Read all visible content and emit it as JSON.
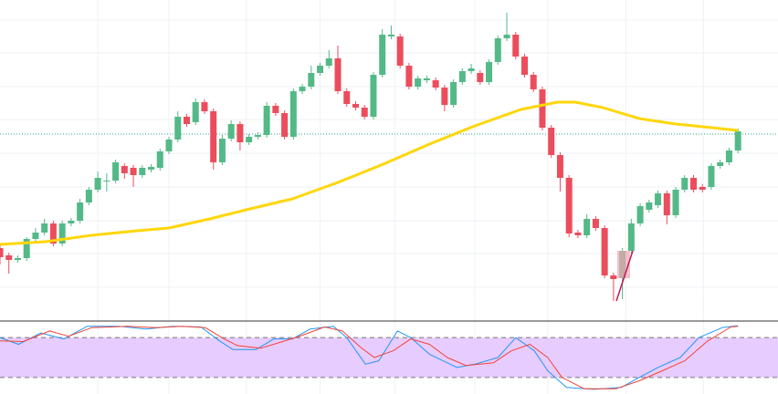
{
  "chart_data": [
    {
      "type": "candlestick",
      "xlim": [
        0,
        87.5
      ],
      "ylim": [
        0,
        350
      ],
      "xticks": [
        11,
        19,
        27.7,
        36,
        44.4,
        53.4,
        61.6,
        70.4,
        79.1
      ],
      "yticks": [
        35,
        72,
        108,
        145,
        182,
        219,
        255,
        292,
        328
      ],
      "grid": true,
      "up_color": "#53b987",
      "down_color": "#eb4d5c",
      "open": [
        78,
        70,
        65,
        67,
        88,
        95,
        105,
        83,
        105,
        108,
        128,
        142,
        152,
        152,
        168,
        166,
        158,
        164,
        166,
        184,
        197,
        222,
        216,
        238,
        228,
        172,
        198,
        214,
        194,
        200,
        202,
        234,
        226,
        200,
        250,
        255,
        270,
        278,
        286,
        250,
        236,
        232,
        222,
        268,
        310,
        310,
        278,
        255,
        262,
        262,
        254,
        235,
        260,
        272,
        270,
        260,
        282,
        308,
        312,
        288,
        268,
        252,
        210,
        180,
        155,
        95,
        92,
        110,
        100,
        48,
        45,
        75,
        105,
        120,
        125,
        138,
        114,
        142,
        155,
        145,
        145,
        168,
        172,
        185
      ],
      "close": [
        68,
        65,
        67,
        88,
        95,
        105,
        83,
        105,
        108,
        128,
        142,
        155,
        152,
        172,
        160,
        158,
        166,
        167,
        184,
        197,
        222,
        214,
        238,
        228,
        172,
        198,
        214,
        194,
        200,
        202,
        234,
        226,
        200,
        250,
        255,
        270,
        278,
        286,
        250,
        236,
        232,
        222,
        268,
        312,
        312,
        278,
        255,
        264,
        264,
        254,
        235,
        260,
        272,
        275,
        260,
        282,
        308,
        312,
        288,
        268,
        252,
        210,
        180,
        155,
        94,
        92,
        110,
        100,
        48,
        44,
        75,
        105,
        124,
        128,
        138,
        114,
        142,
        155,
        142,
        142,
        168,
        172,
        185,
        206
      ],
      "high": [
        82,
        73,
        70,
        90,
        100,
        110,
        108,
        108,
        111,
        132,
        145,
        162,
        160,
        175,
        171,
        169,
        169,
        170,
        187,
        200,
        228,
        225,
        242,
        241,
        231,
        202,
        218,
        217,
        203,
        205,
        238,
        237,
        229,
        253,
        258,
        278,
        281,
        295,
        300,
        253,
        239,
        235,
        271,
        318,
        322,
        313,
        281,
        267,
        267,
        265,
        257,
        263,
        275,
        280,
        273,
        285,
        311,
        336,
        315,
        291,
        271,
        255,
        213,
        183,
        158,
        98,
        115,
        113,
        103,
        51,
        78,
        110,
        127,
        131,
        141,
        141,
        145,
        158,
        158,
        148,
        171,
        175,
        188,
        209
      ],
      "low": [
        60,
        50,
        62,
        64,
        85,
        92,
        80,
        80,
        102,
        105,
        125,
        139,
        140,
        149,
        154,
        145,
        155,
        161,
        163,
        181,
        194,
        211,
        213,
        225,
        164,
        169,
        195,
        185,
        191,
        197,
        199,
        223,
        197,
        197,
        247,
        252,
        267,
        275,
        247,
        233,
        229,
        219,
        219,
        265,
        307,
        275,
        252,
        252,
        259,
        251,
        228,
        232,
        257,
        269,
        257,
        257,
        279,
        305,
        285,
        265,
        249,
        207,
        177,
        140,
        90,
        89,
        89,
        97,
        45,
        20,
        22,
        72,
        102,
        117,
        122,
        104,
        111,
        139,
        139,
        139,
        142,
        165,
        169,
        182
      ],
      "series": [
        {
          "color": "#ffd60a",
          "x": [
            0,
            5.1,
            10.3,
            15.4,
            19,
            23.6,
            27.7,
            32.9,
            38,
            43.1,
            48.3,
            53.4,
            58.6,
            62.7,
            64.7,
            67.8,
            71.9,
            76,
            79.1,
            83
          ],
          "values": [
            82,
            85,
            92,
            97,
            100,
            110,
            120,
            132,
            150,
            170,
            192,
            212,
            230,
            238,
            238,
            232,
            220,
            214,
            211,
            207
          ]
        }
      ],
      "price_line": 203,
      "price_line_color": "#26a69a"
    },
    {
      "type": "line",
      "xlim": [
        0,
        87.5
      ],
      "ylim": [
        -5,
        105
      ],
      "yticks": [
        20,
        80
      ],
      "band": [
        20,
        80
      ],
      "band_color": "#e7ccff",
      "series": [
        {
          "color": "#2196f3",
          "x": [
            0,
            2.1,
            4.6,
            7.2,
            9.8,
            13.4,
            16.4,
            19.5,
            22.6,
            24.7,
            26.2,
            28.8,
            30.8,
            32.9,
            34.9,
            37.5,
            39,
            41.1,
            42.6,
            44.7,
            46.2,
            48.3,
            51.4,
            53.4,
            56,
            58,
            60.1,
            61.6,
            63.7,
            66.8,
            69.9,
            71.9,
            74,
            76.5,
            78.6,
            81.2,
            83
          ],
          "values": [
            80,
            70,
            87,
            78,
            97,
            97,
            93,
            97,
            96,
            75,
            62,
            62,
            78,
            78,
            93,
            97,
            80,
            40,
            45,
            90,
            80,
            55,
            35,
            40,
            50,
            80,
            60,
            30,
            5,
            2,
            5,
            20,
            35,
            50,
            80,
            95,
            98
          ]
        },
        {
          "color": "#f44336",
          "x": [
            0,
            2.6,
            5.6,
            7.7,
            10.3,
            14.4,
            17.5,
            20.5,
            23.1,
            25.2,
            26.7,
            29.3,
            31.8,
            33.9,
            36.5,
            38.5,
            40.6,
            42.1,
            44.2,
            46.2,
            48.3,
            50.3,
            52.4,
            55.5,
            57.5,
            59.6,
            61.6,
            63.2,
            65.7,
            69.3,
            71.9,
            74.5,
            77,
            79.6,
            82.2,
            83
          ],
          "values": [
            75,
            74,
            90,
            82,
            95,
            97,
            95,
            97,
            95,
            78,
            68,
            64,
            74,
            83,
            96,
            90,
            65,
            50,
            60,
            78,
            70,
            50,
            38,
            42,
            60,
            70,
            50,
            20,
            3,
            3,
            15,
            30,
            45,
            75,
            96,
            97
          ]
        }
      ]
    }
  ]
}
